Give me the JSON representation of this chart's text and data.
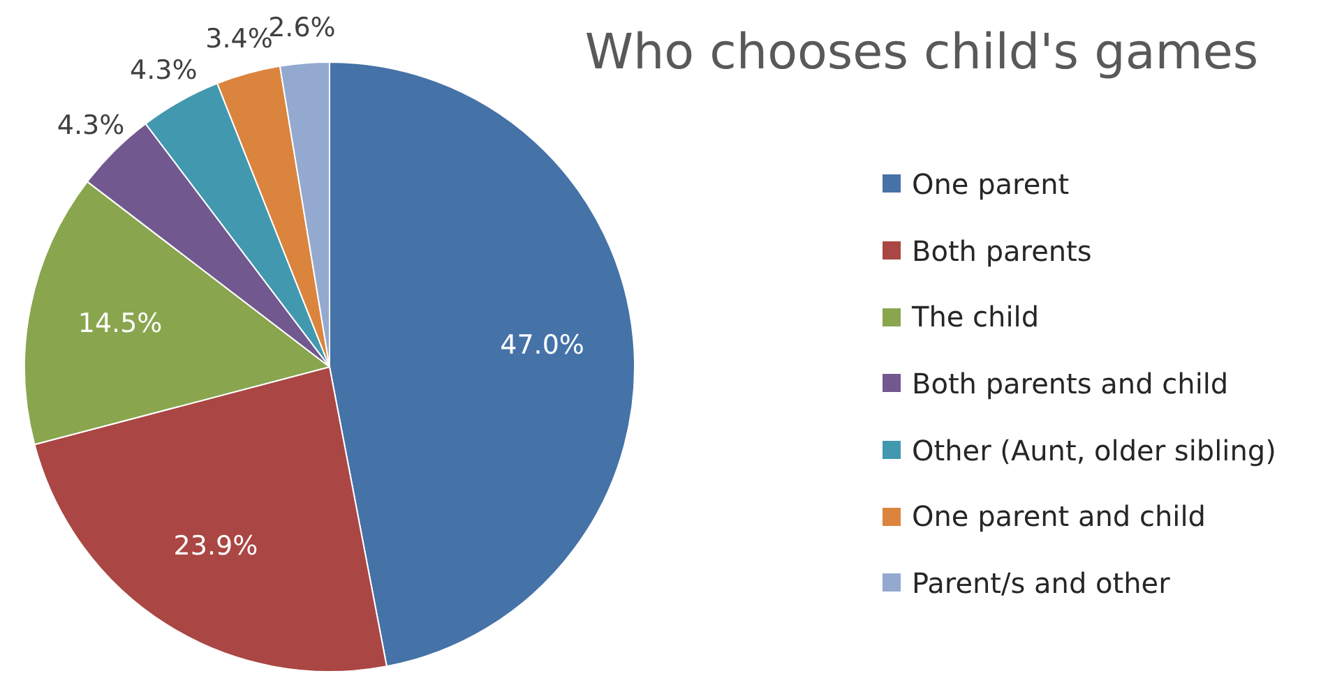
{
  "chart_data": {
    "type": "pie",
    "title": "Who chooses child's games",
    "categories": [
      "One parent",
      "Both parents",
      "The child",
      "Both parents and child",
      "Other (Aunt, older sibling)",
      "One parent and child",
      "Parent/s and other"
    ],
    "values": [
      47.0,
      23.9,
      14.5,
      4.3,
      4.3,
      3.4,
      2.6
    ],
    "colors": [
      "#4572a7",
      "#aa4643",
      "#89a54e",
      "#71588f",
      "#4198af",
      "#db843d",
      "#93a9cf"
    ],
    "value_labels": [
      "47.0%",
      "23.9%",
      "14.5%",
      "4.3%",
      "4.3%",
      "3.4%",
      "2.6%"
    ],
    "legend": "right"
  }
}
